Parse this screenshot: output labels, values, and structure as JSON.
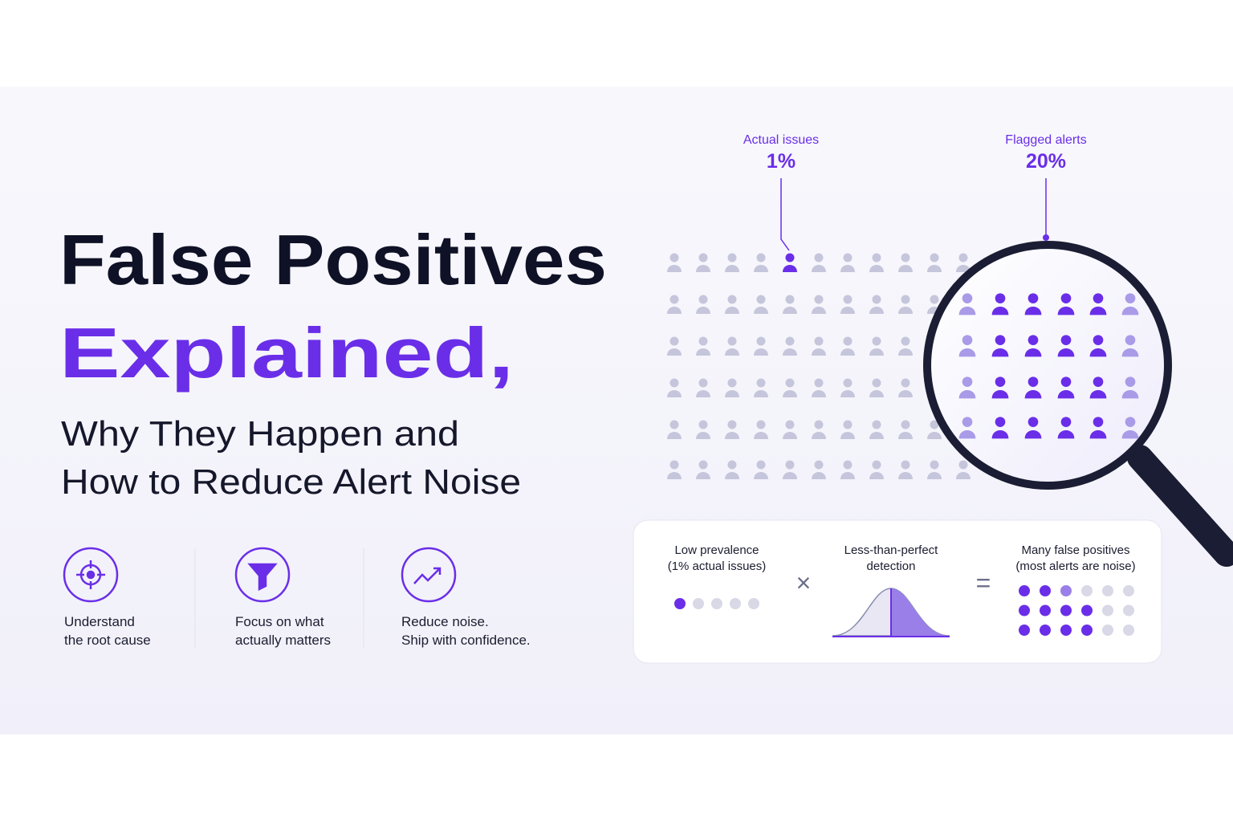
{
  "header": {
    "title_line1": "False Positives",
    "title_line2": "Explained,",
    "subtitle_line1": "Why They Happen and",
    "subtitle_line2": "How to Reduce Alert Noise"
  },
  "features": [
    {
      "line1": "Understand",
      "line2": "the root cause"
    },
    {
      "line1": "Focus on what",
      "line2": "actually matters"
    },
    {
      "line1": "Reduce noise.",
      "line2": "Ship with confidence."
    }
  ],
  "callouts": [
    {
      "label": "Actual issues",
      "value": "1%"
    },
    {
      "label": "Flagged alerts",
      "value": "20%"
    }
  ],
  "equation": {
    "terms": [
      {
        "line1": "Low prevalence",
        "line2": "(1% actual issues)"
      },
      {
        "line1": "Less-than-perfect",
        "line2": "detection"
      },
      {
        "line1": "Many false positives",
        "line2": "(most alerts are noise)"
      }
    ],
    "operators": [
      "×",
      "="
    ]
  }
}
